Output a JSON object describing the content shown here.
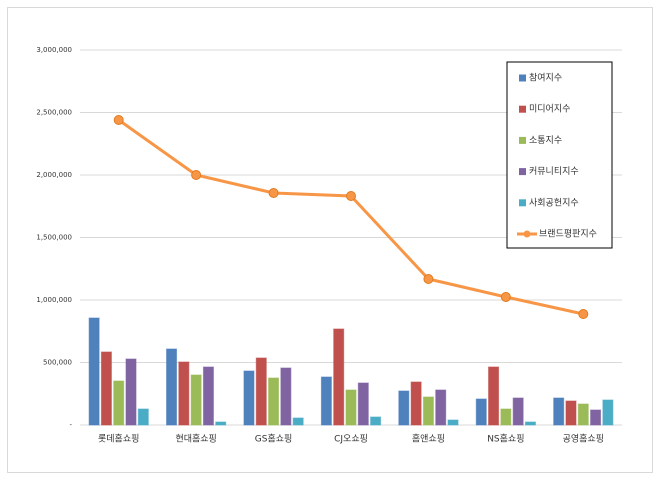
{
  "chart_data": {
    "type": "combo",
    "categories": [
      "롯데홈쇼핑",
      "현대홈쇼핑",
      "GS홈쇼핑",
      "CJ오쇼핑",
      "홈앤쇼핑",
      "NS홈쇼핑",
      "공영홈쇼핑"
    ],
    "series": [
      {
        "name": "참여지수",
        "type": "bar",
        "color": "#4f81bd",
        "values": [
          856000,
          608000,
          432000,
          384000,
          272000,
          208000,
          216000
        ]
      },
      {
        "name": "미디어지수",
        "type": "bar",
        "color": "#c0504d",
        "values": [
          584000,
          504000,
          536000,
          768000,
          344000,
          464000,
          192000
        ]
      },
      {
        "name": "소통지수",
        "type": "bar",
        "color": "#9bbb59",
        "values": [
          352000,
          400000,
          376000,
          280000,
          224000,
          128000,
          168000
        ]
      },
      {
        "name": "커뮤니티지수",
        "type": "bar",
        "color": "#8064a2",
        "values": [
          528000,
          464000,
          456000,
          336000,
          280000,
          216000,
          120000
        ]
      },
      {
        "name": "사회공헌지수",
        "type": "bar",
        "color": "#4bacc6",
        "values": [
          128000,
          24000,
          56000,
          64000,
          40000,
          24000,
          200000
        ]
      },
      {
        "name": "브랜드평판지수",
        "type": "line",
        "color": "#f79646",
        "values": [
          2440000,
          2000000,
          1856000,
          1832000,
          1168000,
          1024000,
          888000
        ]
      }
    ],
    "ylim": [
      0,
      3000000
    ],
    "yticks": [
      {
        "value": 0,
        "label": "-"
      },
      {
        "value": 500000,
        "label": "500,000"
      },
      {
        "value": 1000000,
        "label": "1,000,000"
      },
      {
        "value": 1500000,
        "label": "1,500,000"
      },
      {
        "value": 2000000,
        "label": "2,000,000"
      },
      {
        "value": 2500000,
        "label": "2,500,000"
      },
      {
        "value": 3000000,
        "label": "3,000,000"
      }
    ],
    "grid": true,
    "legend": "right"
  }
}
